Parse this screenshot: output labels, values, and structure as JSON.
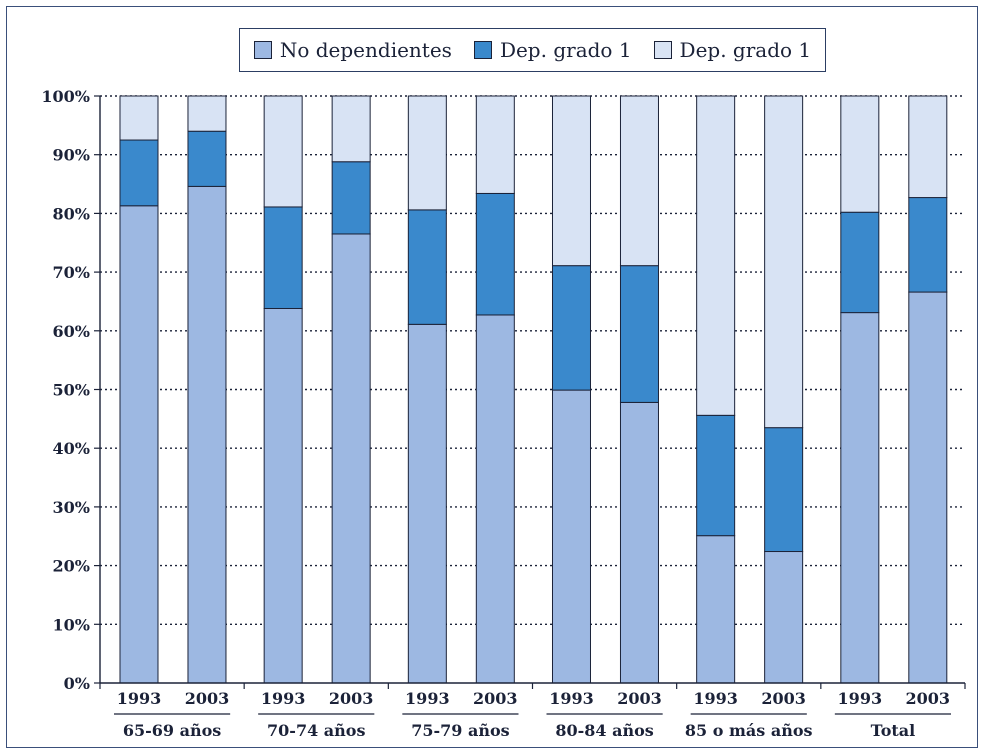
{
  "chart_data": {
    "type": "bar",
    "stacked": true,
    "percent": true,
    "groups": [
      "65-69 años",
      "70-74 años",
      "75-79 años",
      "80-84 años",
      "85 o más años",
      "Total"
    ],
    "years": [
      "1993",
      "2003"
    ],
    "series": [
      {
        "name": "No dependientes",
        "color": "#9db8e2",
        "values": [
          81.3,
          84.6,
          63.8,
          76.5,
          61.1,
          62.7,
          49.9,
          47.8,
          25.1,
          22.4,
          63.1,
          66.6
        ]
      },
      {
        "name": "Dep. grado 1",
        "color": "#3a89cc",
        "values": [
          11.2,
          9.4,
          17.3,
          12.3,
          19.5,
          20.7,
          21.2,
          23.3,
          20.5,
          21.1,
          17.1,
          16.1
        ]
      },
      {
        "name": "Dep. grado 1",
        "color": "#d8e3f4",
        "values": [
          7.5,
          6.0,
          18.9,
          11.2,
          19.4,
          16.6,
          28.9,
          28.9,
          54.4,
          56.5,
          19.8,
          17.3
        ]
      }
    ],
    "y_ticks": [
      "0%",
      "10%",
      "20%",
      "30%",
      "40%",
      "50%",
      "60%",
      "70%",
      "80%",
      "90%",
      "100%"
    ],
    "ylim": [
      0,
      100
    ],
    "grid": "dotted horizontal",
    "legend_position": "top"
  },
  "legend": {
    "items": [
      {
        "label": "No dependientes",
        "color": "#9db8e2"
      },
      {
        "label": "Dep. grado 1",
        "color": "#3a89cc"
      },
      {
        "label": "Dep. grado 1",
        "color": "#d8e3f4"
      }
    ]
  }
}
